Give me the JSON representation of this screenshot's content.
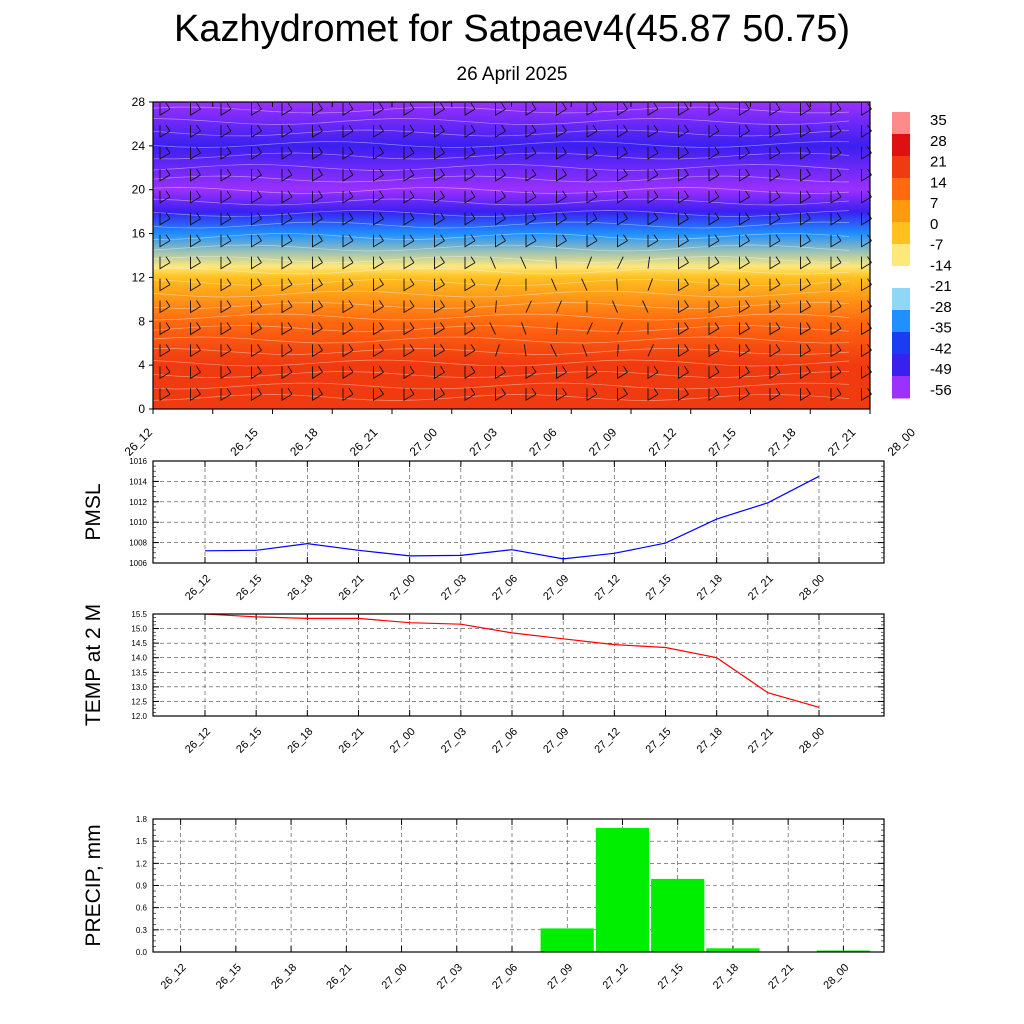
{
  "header": {
    "title": "Kazhydromet for Satpaev4(45.87 50.75)",
    "subtitle": "26 April 2025"
  },
  "colorbar": {
    "labels": [
      "35",
      "28",
      "21",
      "14",
      "7",
      "0",
      "-7",
      "-14",
      "-21",
      "-28",
      "-35",
      "-42",
      "-49",
      "-56"
    ]
  },
  "chart_data": [
    {
      "type": "heatmap",
      "name": "cross-section",
      "title": "",
      "x_ticks": [
        "26_12",
        "26_15",
        "26_18",
        "26_21",
        "27_00",
        "27_03",
        "27_06",
        "27_09",
        "27_12",
        "27_15",
        "27_18",
        "27_21",
        "28_00"
      ],
      "y_ticks": [
        0,
        4,
        8,
        12,
        16,
        20,
        24,
        28
      ],
      "ylim": [
        0,
        28
      ],
      "colorscale": [
        "#9b30ff",
        "#3a20f0",
        "#1a3cf5",
        "#1e90ff",
        "#8fd8f5",
        "#ffffff",
        "#ffe87a",
        "#ffc020",
        "#ff9a10",
        "#ff6a10",
        "#f03a10",
        "#e01010",
        "#ff8a8a"
      ],
      "temperature_bands_by_level": [
        {
          "level": 0,
          "value": 21
        },
        {
          "level": 4,
          "value": 18
        },
        {
          "level": 8,
          "value": 10
        },
        {
          "level": 12,
          "value": -3
        },
        {
          "level": 13,
          "value": -14
        },
        {
          "level": 16,
          "value": -35
        },
        {
          "level": 18,
          "value": -52
        },
        {
          "level": 20,
          "value": -58
        },
        {
          "level": 24,
          "value": -56
        },
        {
          "level": 28,
          "value": -60
        }
      ]
    },
    {
      "type": "line",
      "ylabel": "PMSL",
      "x": [
        "26_12",
        "26_15",
        "26_18",
        "26_21",
        "27_00",
        "27_03",
        "27_06",
        "27_09",
        "27_12",
        "27_15",
        "27_18",
        "27_21",
        "28_00"
      ],
      "series": [
        {
          "values": [
            1007.2,
            1007.25,
            1007.9,
            1007.25,
            1006.7,
            1006.75,
            1007.3,
            1006.4,
            1006.95,
            1007.95,
            1010.3,
            1011.9,
            1014.5
          ]
        }
      ],
      "ylim": [
        1006,
        1016
      ],
      "y_ticks": [
        "1006",
        "1008",
        "1010",
        "1012",
        "1014",
        "1016"
      ],
      "color": "#0000ff",
      "grid": true
    },
    {
      "type": "line",
      "ylabel": "TEMP at 2 M",
      "x": [
        "26_12",
        "26_15",
        "26_18",
        "26_21",
        "27_00",
        "27_03",
        "27_06",
        "27_09",
        "27_12",
        "27_15",
        "27_18",
        "27_21",
        "28_00"
      ],
      "series": [
        {
          "values": [
            15.5,
            15.4,
            15.35,
            15.35,
            15.2,
            15.15,
            14.85,
            14.65,
            14.45,
            14.35,
            14.0,
            12.8,
            12.3
          ]
        }
      ],
      "ylim": [
        12.0,
        15.5
      ],
      "y_ticks": [
        "12.0",
        "12.5",
        "13.0",
        "13.5",
        "14.0",
        "14.5",
        "15.0",
        "15.5"
      ],
      "color": "#ff0000",
      "grid": true
    },
    {
      "type": "bar",
      "ylabel": "PRECIP, mm",
      "categories": [
        "26_12",
        "26_15",
        "26_18",
        "26_21",
        "27_00",
        "27_03",
        "27_06",
        "27_09",
        "27_12",
        "27_15",
        "27_18",
        "27_21",
        "28_00"
      ],
      "values": [
        0,
        0,
        0,
        0,
        0,
        0,
        0,
        0.32,
        1.68,
        0.99,
        0.05,
        0,
        0.02
      ],
      "ylim": [
        0,
        1.8
      ],
      "y_ticks": [
        "0.0",
        "0.3",
        "0.6",
        "0.9",
        "1.2",
        "1.5",
        "1.8"
      ],
      "color": "#00ee00",
      "grid": true
    }
  ]
}
